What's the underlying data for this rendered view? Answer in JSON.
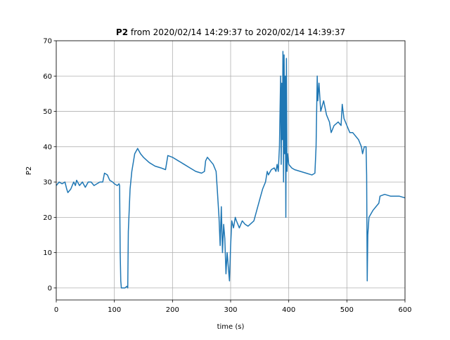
{
  "chart_data": {
    "type": "line",
    "title": {
      "bold": "P2",
      "text": "from 2020/02/14 14:29:37 to 2020/02/14 14:39:37"
    },
    "xlabel": "time (s)",
    "ylabel": "P2",
    "xlim": [
      0,
      600
    ],
    "ylim": [
      -3.4,
      70
    ],
    "xticks": [
      0,
      100,
      200,
      300,
      400,
      500,
      600
    ],
    "yticks": [
      0,
      10,
      20,
      30,
      40,
      50,
      60,
      70
    ],
    "grid": true,
    "series": [
      {
        "name": "P2",
        "color": "#1f77b4",
        "x": [
          0,
          5,
          10,
          15,
          18,
          20,
          25,
          30,
          33,
          35,
          40,
          45,
          50,
          55,
          60,
          65,
          70,
          75,
          80,
          83,
          88,
          92,
          97,
          100,
          105,
          108,
          109,
          110,
          111,
          112,
          118,
          122,
          123,
          124,
          127,
          130,
          135,
          140,
          145,
          150,
          160,
          170,
          180,
          188,
          192,
          200,
          210,
          220,
          230,
          240,
          250,
          255,
          257,
          260,
          265,
          270,
          275,
          277,
          280,
          282,
          284,
          286,
          288,
          290,
          292,
          294,
          296,
          298,
          300,
          302,
          305,
          308,
          310,
          315,
          320,
          325,
          330,
          340,
          345,
          350,
          355,
          360,
          363,
          365,
          370,
          375,
          378,
          380,
          382,
          384,
          386,
          387,
          388,
          389,
          390,
          391,
          392,
          393,
          394,
          395,
          396,
          397,
          398,
          400,
          405,
          410,
          420,
          430,
          440,
          445,
          447,
          449,
          450,
          452,
          455,
          460,
          465,
          470,
          473,
          478,
          485,
          490,
          492,
          495,
          500,
          505,
          510,
          515,
          520,
          525,
          527,
          530,
          533,
          534,
          535,
          536,
          538,
          545,
          550,
          555,
          557,
          565,
          575,
          590,
          600
        ],
        "values": [
          29,
          30,
          29.5,
          30,
          28,
          27,
          28,
          30,
          29,
          30.5,
          29,
          30,
          28.5,
          30,
          30,
          29,
          29.5,
          30,
          30,
          32.5,
          32,
          30.5,
          30,
          29.5,
          29,
          29.5,
          29,
          10,
          2,
          0,
          0,
          0.5,
          0,
          16,
          28,
          33,
          38,
          39.5,
          38,
          37,
          35.5,
          34.5,
          34,
          33.5,
          37.5,
          37,
          36,
          35,
          34,
          33,
          32.5,
          33,
          36,
          37,
          36,
          35,
          33,
          28,
          20,
          12,
          23,
          10,
          18,
          14,
          4,
          10,
          6,
          2,
          12,
          19,
          17,
          20,
          19,
          17,
          19,
          18,
          17.5,
          19,
          22,
          25,
          28,
          30,
          33,
          32,
          33.5,
          34,
          33,
          35,
          33,
          40,
          60,
          35,
          58,
          42,
          67,
          30,
          66,
          38,
          60,
          20,
          65,
          33,
          38,
          35,
          34,
          33.5,
          33,
          32.5,
          32,
          32.5,
          40,
          60,
          53,
          58,
          50,
          53,
          49,
          47,
          44,
          46,
          47,
          46,
          52,
          48,
          46,
          44,
          44,
          43,
          42,
          40,
          38,
          40,
          40,
          32,
          2,
          15,
          20,
          22,
          23,
          24,
          26,
          26.5,
          26,
          26,
          25.5
        ]
      }
    ]
  }
}
